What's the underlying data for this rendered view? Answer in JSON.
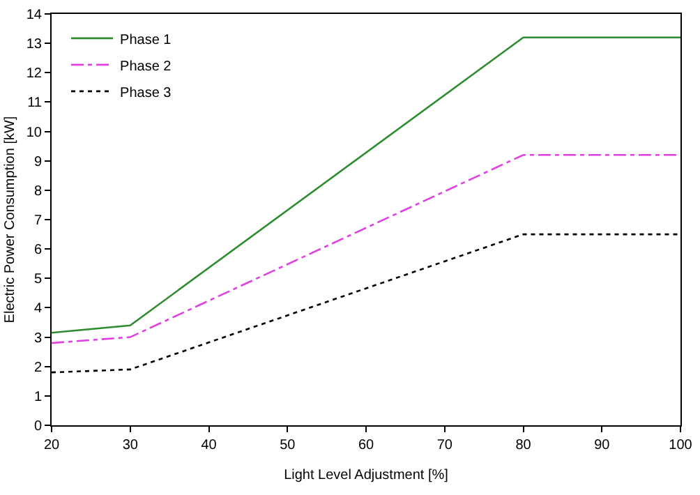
{
  "chart_data": {
    "type": "line",
    "xlabel": "Light Level Adjustment [%]",
    "ylabel": "Electric Power Consumption [kW]",
    "x": [
      20,
      30,
      80,
      100
    ],
    "series": [
      {
        "name": "Phase 1",
        "color": "#2e8b2e",
        "line_style": "solid",
        "values": [
          3.15,
          3.4,
          13.2,
          13.2
        ]
      },
      {
        "name": "Phase 2",
        "color": "#e040e0",
        "line_style": "dashdot",
        "values": [
          2.8,
          3.0,
          9.2,
          9.2
        ]
      },
      {
        "name": "Phase 3",
        "color": "#000000",
        "line_style": "dotted",
        "values": [
          1.8,
          1.9,
          6.5,
          6.5
        ]
      }
    ],
    "xlim": [
      20,
      100
    ],
    "xticks": [
      20,
      30,
      40,
      50,
      60,
      70,
      80,
      90,
      100
    ],
    "ylim": [
      0,
      14
    ],
    "yticks": [
      0,
      1,
      2,
      3,
      4,
      5,
      6,
      7,
      8,
      9,
      10,
      11,
      12,
      13,
      14
    ],
    "grid": false,
    "legend": "top left",
    "marker": "none"
  }
}
